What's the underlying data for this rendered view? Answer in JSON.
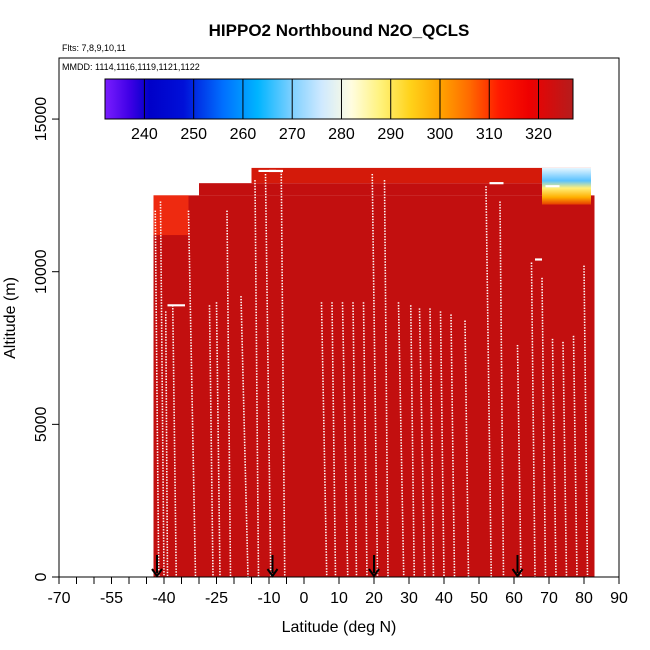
{
  "chart_data": {
    "type": "heatmap",
    "title": "HIPPO2 Northbound N2O_QCLS",
    "flights_label": "Flts: 7,8,9,10,11",
    "dates_label": "MMDD: 1114,1116,1119,1121,1122",
    "xlabel": "Latitude (deg N)",
    "ylabel": "Altitude (m)",
    "xlim": [
      -70,
      90
    ],
    "ylim": [
      0,
      17000
    ],
    "x_ticks_major": [
      -70,
      -55,
      -40,
      -25,
      -10,
      0,
      10,
      20,
      30,
      40,
      50,
      60,
      70,
      80,
      90
    ],
    "x_tick_labels": [
      "-70",
      "-55",
      "-40",
      "-25",
      "-10",
      "0",
      "10",
      "20",
      "30",
      "40",
      "50",
      "60",
      "70",
      "80",
      "90"
    ],
    "x_ticks_minor": [
      -65,
      -60,
      -50,
      -45,
      -35,
      -30,
      -20,
      -15,
      -5
    ],
    "y_ticks": [
      0,
      5000,
      10000,
      15000
    ],
    "y_tick_labels": [
      "0",
      "5000",
      "10000",
      "15000"
    ],
    "colorbar": {
      "range": [
        232,
        327
      ],
      "ticks": [
        240,
        250,
        260,
        270,
        280,
        290,
        300,
        310,
        320
      ],
      "tick_labels": [
        "240",
        "250",
        "260",
        "270",
        "280",
        "290",
        "300",
        "310",
        "320"
      ],
      "stops": [
        {
          "v": 232,
          "c": "#7a1dff"
        },
        {
          "v": 237,
          "c": "#3f00e6"
        },
        {
          "v": 241,
          "c": "#0000c8"
        },
        {
          "v": 248,
          "c": "#0010d8"
        },
        {
          "v": 256,
          "c": "#0070ff"
        },
        {
          "v": 263,
          "c": "#00b4ff"
        },
        {
          "v": 270,
          "c": "#7fd0ff"
        },
        {
          "v": 276,
          "c": "#cfe9ff"
        },
        {
          "v": 282,
          "c": "#fffde0"
        },
        {
          "v": 288,
          "c": "#fff27a"
        },
        {
          "v": 294,
          "c": "#ffd21a"
        },
        {
          "v": 300,
          "c": "#ffa400"
        },
        {
          "v": 306,
          "c": "#ff6a00"
        },
        {
          "v": 312,
          "c": "#ff1a00"
        },
        {
          "v": 318,
          "c": "#ee0000"
        },
        {
          "v": 327,
          "c": "#b51c1c"
        }
      ]
    },
    "field_color": "#c20f0f",
    "data_domain": {
      "lat": [
        -43,
        83
      ],
      "alt_max": 13400
    },
    "high_altitude_feature": {
      "lat_range": [
        68,
        82
      ],
      "alt_range": [
        12200,
        13400
      ],
      "min_value": 270
    },
    "profiles": [
      {
        "lat0": -42.5,
        "lat1": -41.5,
        "alt_max": 12000
      },
      {
        "lat0": -41.0,
        "lat1": -40.0,
        "alt_max": 12300
      },
      {
        "lat0": -39.5,
        "lat1": -39.0,
        "alt_max": 8700
      },
      {
        "lat0": -37.5,
        "lat1": -36.5,
        "alt_max": 8900
      },
      {
        "lat0": -33.0,
        "lat1": -31.0,
        "alt_max": 12000
      },
      {
        "lat0": -27.0,
        "lat1": -26.0,
        "alt_max": 8900
      },
      {
        "lat0": -25.0,
        "lat1": -24.0,
        "alt_max": 9000
      },
      {
        "lat0": -22.0,
        "lat1": -21.0,
        "alt_max": 12000
      },
      {
        "lat0": -18.0,
        "lat1": -16.0,
        "alt_max": 9200
      },
      {
        "lat0": -14.0,
        "lat1": -13.0,
        "alt_max": 13000
      },
      {
        "lat0": -11.0,
        "lat1": -9.5,
        "alt_max": 13200
      },
      {
        "lat0": -6.5,
        "lat1": -5.5,
        "alt_max": 13300
      },
      {
        "lat0": 5.0,
        "lat1": 6.5,
        "alt_max": 9000
      },
      {
        "lat0": 8.0,
        "lat1": 9.0,
        "alt_max": 9000
      },
      {
        "lat0": 11.0,
        "lat1": 12.5,
        "alt_max": 9000
      },
      {
        "lat0": 14.0,
        "lat1": 15.0,
        "alt_max": 9000
      },
      {
        "lat0": 17.0,
        "lat1": 18.0,
        "alt_max": 9000
      },
      {
        "lat0": 19.5,
        "lat1": 21.0,
        "alt_max": 13200
      },
      {
        "lat0": 23.0,
        "lat1": 24.0,
        "alt_max": 13000
      },
      {
        "lat0": 27.0,
        "lat1": 28.5,
        "alt_max": 9000
      },
      {
        "lat0": 30.5,
        "lat1": 31.5,
        "alt_max": 8900
      },
      {
        "lat0": 33.0,
        "lat1": 34.5,
        "alt_max": 8800
      },
      {
        "lat0": 36.0,
        "lat1": 37.0,
        "alt_max": 8800
      },
      {
        "lat0": 39.0,
        "lat1": 40.0,
        "alt_max": 8700
      },
      {
        "lat0": 42.0,
        "lat1": 43.0,
        "alt_max": 8600
      },
      {
        "lat0": 46.0,
        "lat1": 47.0,
        "alt_max": 8400
      },
      {
        "lat0": 52.0,
        "lat1": 53.5,
        "alt_max": 12800
      },
      {
        "lat0": 56.0,
        "lat1": 57.0,
        "alt_max": 12300
      },
      {
        "lat0": 61.0,
        "lat1": 62.0,
        "alt_max": 7600
      },
      {
        "lat0": 65.0,
        "lat1": 66.0,
        "alt_max": 10300
      },
      {
        "lat0": 68.0,
        "lat1": 69.0,
        "alt_max": 9800
      },
      {
        "lat0": 71.0,
        "lat1": 72.0,
        "alt_max": 7800
      },
      {
        "lat0": 74.0,
        "lat1": 75.0,
        "alt_max": 7700
      },
      {
        "lat0": 77.0,
        "lat1": 78.0,
        "alt_max": 7900
      },
      {
        "lat0": 80.0,
        "lat1": 81.0,
        "alt_max": 10200
      }
    ],
    "level_segments": [
      {
        "lat0": -39.0,
        "lat1": -34.0,
        "alt": 8900
      },
      {
        "lat0": -13.0,
        "lat1": -8.0,
        "alt": 13300
      },
      {
        "lat0": -10.0,
        "lat1": -6.0,
        "alt": 13300
      },
      {
        "lat0": 53.0,
        "lat1": 57.0,
        "alt": 12900
      },
      {
        "lat0": 69.0,
        "lat1": 73.0,
        "alt": 12800
      },
      {
        "lat0": 66.0,
        "lat1": 68.0,
        "alt": 10400
      }
    ],
    "arrow_markers_lat": [
      -42,
      -9,
      20,
      61
    ]
  }
}
